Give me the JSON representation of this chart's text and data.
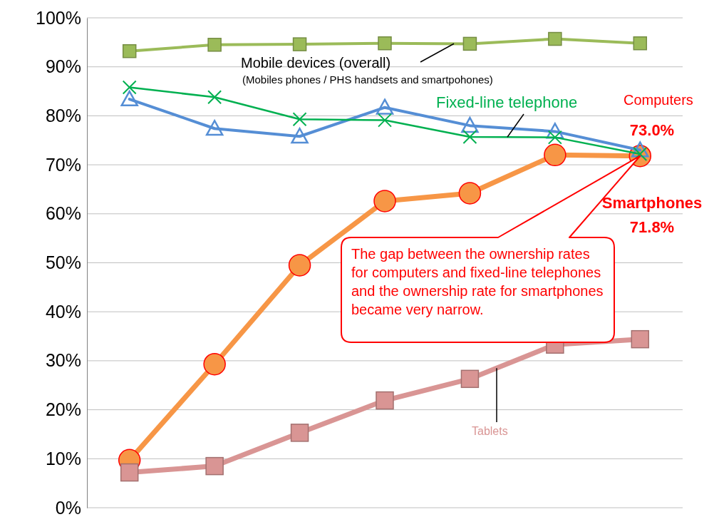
{
  "chart_data": {
    "type": "line",
    "categories": [
      null,
      null,
      null,
      null,
      null,
      null,
      null
    ],
    "ylim": [
      0,
      100
    ],
    "yticks": [
      {
        "value": 0,
        "label": "0%"
      },
      {
        "value": 10,
        "label": "10%"
      },
      {
        "value": 20,
        "label": "20%"
      },
      {
        "value": 30,
        "label": "30%"
      },
      {
        "value": 40,
        "label": "40%"
      },
      {
        "value": 50,
        "label": "50%"
      },
      {
        "value": 60,
        "label": "60%"
      },
      {
        "value": 70,
        "label": "70%"
      },
      {
        "value": 80,
        "label": "80%"
      },
      {
        "value": 90,
        "label": "90%"
      },
      {
        "value": 100,
        "label": "100%"
      }
    ],
    "grid": "y",
    "legend": false,
    "series": [
      {
        "name": "Mobile devices (overall)",
        "color": "#9bbb59",
        "marker": "square",
        "values": [
          93.2,
          94.5,
          94.6,
          94.8,
          94.7,
          95.7,
          94.8
        ]
      },
      {
        "name": "Fixed-line telephone",
        "color": "#00b050",
        "marker": "cross",
        "values": [
          85.8,
          83.8,
          79.3,
          79.1,
          75.7,
          75.6,
          72.2
        ]
      },
      {
        "color": "#558ed5",
        "marker": "triangle",
        "values": [
          83.4,
          77.4,
          75.8,
          81.7,
          78.0,
          76.8,
          73.0
        ]
      },
      {
        "color": "#f79646",
        "marker": "circle",
        "values": [
          9.7,
          29.3,
          49.5,
          62.6,
          64.2,
          72.0,
          71.8
        ]
      },
      {
        "name": "Tablets",
        "color": "#d99594",
        "marker": "square",
        "values": [
          7.2,
          8.5,
          15.3,
          21.9,
          26.3,
          33.3,
          34.4
        ]
      }
    ],
    "annotations": [
      "(Mobiles phones / PHS handsets and smartpohones)",
      "The gap between the ownership rates for computers and fixed-line telephones and the ownership rate for smartphones became very narrow.",
      "Computers",
      "73.0%",
      "Smartphones",
      "71.8%"
    ]
  }
}
